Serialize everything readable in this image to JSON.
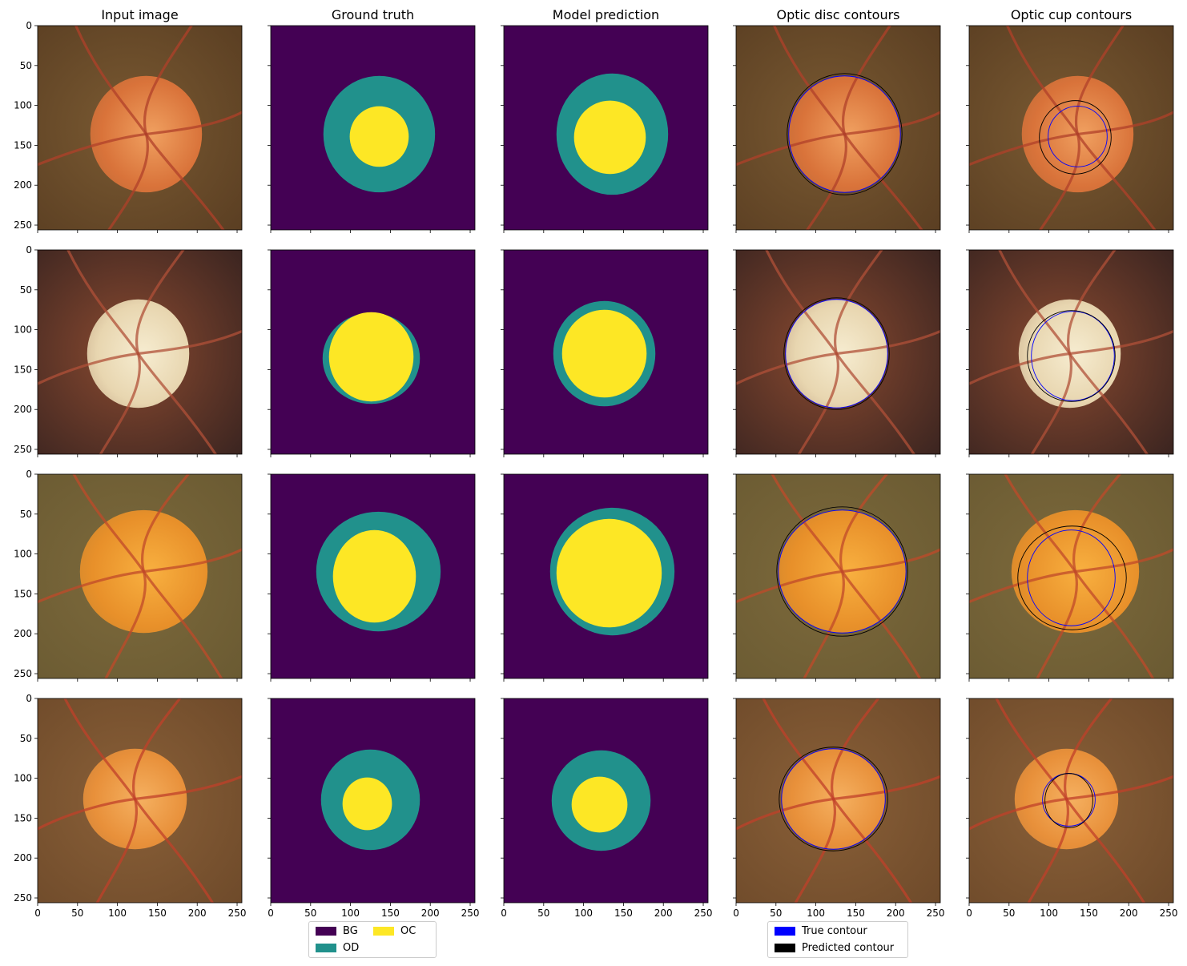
{
  "columns": [
    {
      "key": "input",
      "title": "Input image"
    },
    {
      "key": "truth",
      "title": "Ground truth"
    },
    {
      "key": "pred",
      "title": "Model prediction"
    },
    {
      "key": "disc",
      "title": "Optic disc contours"
    },
    {
      "key": "cup",
      "title": "Optic cup contours"
    }
  ],
  "axis": {
    "xticks": [
      "0",
      "50",
      "100",
      "150",
      "200",
      "250"
    ],
    "yticks": [
      "0",
      "50",
      "100",
      "150",
      "200",
      "250"
    ],
    "range": [
      0,
      256
    ]
  },
  "colors": {
    "BG": "#440154",
    "OD": "#21918c",
    "OC": "#fde725",
    "true_contour": "#0000ff",
    "pred_contour": "#000000"
  },
  "rows": [
    {
      "fundus": {
        "bg": "#7a5a32",
        "bg_dark": "#5a3e22",
        "disc": "#d9733a",
        "glow": "#f0a060",
        "vessel": "#b0402a"
      },
      "truth": {
        "od": {
          "cx": 136,
          "cy": 136,
          "rx": 70,
          "ry": 73
        },
        "oc": {
          "cx": 136,
          "cy": 139,
          "rx": 37,
          "ry": 38
        }
      },
      "pred": {
        "od": {
          "cx": 136,
          "cy": 136,
          "rx": 70,
          "ry": 76
        },
        "oc": {
          "cx": 133,
          "cy": 140,
          "rx": 45,
          "ry": 46
        }
      },
      "disc_true": {
        "cx": 136,
        "cy": 136,
        "rx": 70,
        "ry": 73
      },
      "disc_pred": {
        "cx": 136,
        "cy": 136,
        "rx": 72,
        "ry": 76
      },
      "cup_true": {
        "cx": 136,
        "cy": 139,
        "rx": 37,
        "ry": 38
      },
      "cup_pred": {
        "cx": 133,
        "cy": 140,
        "rx": 45,
        "ry": 46
      }
    },
    {
      "fundus": {
        "bg": "#8a4a30",
        "bg_dark": "#3a2420",
        "disc": "#e8d6b0",
        "glow": "#f6ecd0",
        "vessel": "#b05038"
      },
      "truth": {
        "od": {
          "cx": 126,
          "cy": 136,
          "rx": 61,
          "ry": 57
        },
        "oc": {
          "cx": 126,
          "cy": 134,
          "rx": 53,
          "ry": 56
        }
      },
      "pred": {
        "od": {
          "cx": 126,
          "cy": 130,
          "rx": 64,
          "ry": 66
        },
        "oc": {
          "cx": 126,
          "cy": 130,
          "rx": 53,
          "ry": 55
        }
      },
      "disc_true": {
        "cx": 126,
        "cy": 130,
        "rx": 64,
        "ry": 68
      },
      "disc_pred": {
        "cx": 126,
        "cy": 130,
        "rx": 66,
        "ry": 70
      },
      "cup_true": {
        "cx": 130,
        "cy": 133,
        "rx": 52,
        "ry": 56
      },
      "cup_pred": {
        "cx": 128,
        "cy": 133,
        "rx": 55,
        "ry": 57
      }
    },
    {
      "fundus": {
        "bg": "#7d6a3c",
        "bg_dark": "#6a5a32",
        "disc": "#e8902a",
        "glow": "#f8b040",
        "vessel": "#c04a2a"
      },
      "truth": {
        "od": {
          "cx": 135,
          "cy": 122,
          "rx": 78,
          "ry": 75
        },
        "oc": {
          "cx": 130,
          "cy": 128,
          "rx": 52,
          "ry": 58
        }
      },
      "pred": {
        "od": {
          "cx": 136,
          "cy": 122,
          "rx": 78,
          "ry": 80
        },
        "oc": {
          "cx": 132,
          "cy": 124,
          "rx": 66,
          "ry": 68
        }
      },
      "disc_true": {
        "cx": 133,
        "cy": 122,
        "rx": 80,
        "ry": 77
      },
      "disc_pred": {
        "cx": 133,
        "cy": 122,
        "rx": 82,
        "ry": 81
      },
      "cup_true": {
        "cx": 128,
        "cy": 130,
        "rx": 55,
        "ry": 60
      },
      "cup_pred": {
        "cx": 129,
        "cy": 130,
        "rx": 68,
        "ry": 65
      }
    },
    {
      "fundus": {
        "bg": "#8a6038",
        "bg_dark": "#6e4a2a",
        "disc": "#e8903a",
        "glow": "#f5b060",
        "vessel": "#c0402a"
      },
      "truth": {
        "od": {
          "cx": 125,
          "cy": 127,
          "rx": 62,
          "ry": 63
        },
        "oc": {
          "cx": 121,
          "cy": 132,
          "rx": 31,
          "ry": 33
        }
      },
      "pred": {
        "od": {
          "cx": 122,
          "cy": 128,
          "rx": 62,
          "ry": 63
        },
        "oc": {
          "cx": 120,
          "cy": 133,
          "rx": 35,
          "ry": 35
        }
      },
      "disc_true": {
        "cx": 122,
        "cy": 126,
        "rx": 65,
        "ry": 63
      },
      "disc_pred": {
        "cx": 122,
        "cy": 126,
        "rx": 68,
        "ry": 65
      },
      "cup_true": {
        "cx": 125,
        "cy": 127,
        "rx": 33,
        "ry": 33
      },
      "cup_pred": {
        "cx": 125,
        "cy": 128,
        "rx": 30,
        "ry": 34
      }
    }
  ],
  "legend_classes": {
    "items": [
      {
        "label": "BG",
        "color": "#440154"
      },
      {
        "label": "OD",
        "color": "#21918c"
      },
      {
        "label": "OC",
        "color": "#fde725"
      }
    ]
  },
  "legend_contours": {
    "items": [
      {
        "label": "True contour",
        "color": "#0000ff"
      },
      {
        "label": "Predicted contour",
        "color": "#000000"
      }
    ]
  }
}
